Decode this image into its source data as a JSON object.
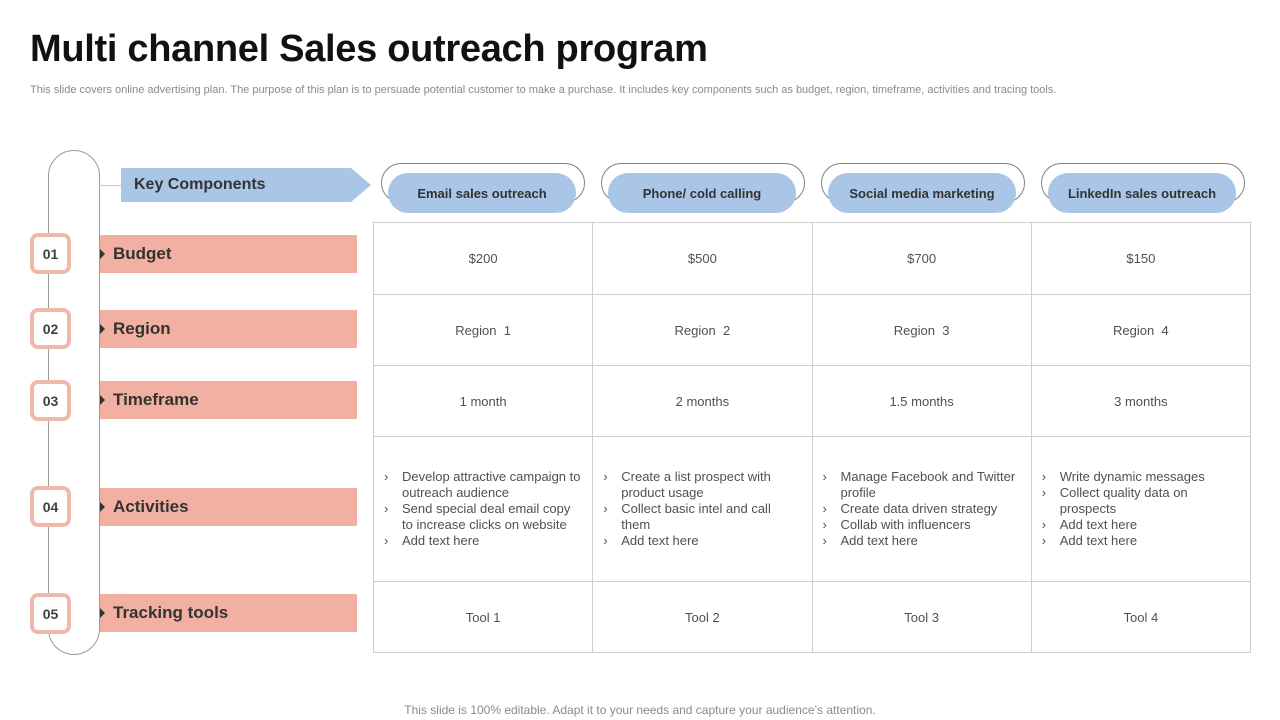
{
  "title": "Multi channel Sales outreach program",
  "subtitle": "This slide covers online advertising plan. The purpose of this plan is to persuade potential customer to make a purchase. It includes key components such as budget, region, timeframe, activities and tracing tools.",
  "footer": "This slide is 100% editable. Adapt it to your needs and capture your audience’s attention.",
  "key_components_label": "Key Components",
  "rows": [
    {
      "number": "01",
      "label": "Budget"
    },
    {
      "number": "02",
      "label": "Region"
    },
    {
      "number": "03",
      "label": "Timeframe"
    },
    {
      "number": "04",
      "label": "Activities"
    },
    {
      "number": "05",
      "label": "Tracking tools"
    }
  ],
  "channels": [
    "Email sales outreach",
    "Phone/ cold calling",
    "Social media marketing",
    "LinkedIn sales outreach"
  ],
  "budget": [
    "$200",
    "$500",
    "$700",
    "$150"
  ],
  "region": [
    "Region  1",
    "Region  2",
    "Region  3",
    "Region  4"
  ],
  "timeframe": [
    "1 month",
    "2 months",
    "1.5 months",
    "3 months"
  ],
  "activities": [
    [
      "Develop attractive campaign to outreach audience",
      "Send special deal email copy to increase clicks on website",
      "Add text here"
    ],
    [
      "Create a list prospect with product usage",
      "Collect basic intel and call them",
      "Add text here"
    ],
    [
      "Manage Facebook and Twitter profile",
      "Create data driven strategy",
      "Collab with influencers",
      "Add text here"
    ],
    [
      "Write dynamic messages",
      "Collect quality data on prospects",
      "Add text here",
      "Add text here"
    ]
  ],
  "tools": [
    "Tool 1",
    "Tool 2",
    "Tool 3",
    "Tool 4"
  ],
  "colors": {
    "accent_blue": "#a9c6e6",
    "accent_salmon": "#f2b0a2",
    "number_border": "#eeb9aa"
  }
}
